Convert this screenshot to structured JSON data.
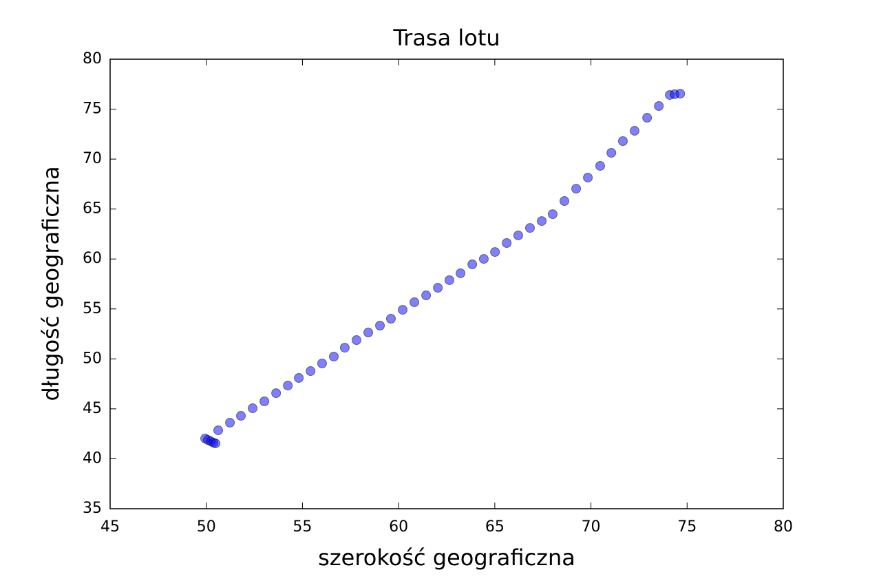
{
  "chart_data": {
    "type": "scatter",
    "title": "Trasa lotu",
    "x_label": "szerokość geograficzna",
    "y_label": "długość geograficzna",
    "x": [
      49.94,
      50.08,
      50.23,
      50.37,
      50.48,
      50.62,
      51.23,
      51.8,
      52.41,
      53.02,
      53.63,
      54.24,
      54.81,
      55.42,
      56.02,
      56.63,
      57.2,
      57.81,
      58.42,
      59.03,
      59.6,
      60.21,
      60.82,
      61.43,
      62.04,
      62.64,
      63.22,
      63.83,
      64.43,
      65.01,
      65.62,
      66.22,
      66.83,
      67.44,
      68.01,
      68.62,
      69.23,
      69.84,
      70.48,
      71.06,
      71.66,
      72.27,
      72.92,
      73.53,
      74.1,
      74.35,
      74.64
    ],
    "values": [
      42.03,
      41.89,
      41.75,
      41.61,
      41.54,
      42.85,
      43.61,
      44.3,
      45.06,
      45.75,
      46.57,
      47.33,
      48.09,
      48.78,
      49.54,
      50.23,
      51.12,
      51.88,
      52.64,
      53.33,
      54.02,
      54.91,
      55.67,
      56.36,
      57.12,
      57.88,
      58.57,
      59.46,
      60.01,
      60.7,
      61.6,
      62.36,
      63.11,
      63.8,
      64.49,
      65.8,
      67.04,
      68.15,
      69.32,
      70.63,
      71.8,
      72.83,
      74.14,
      75.31,
      76.42,
      76.49,
      76.55
    ],
    "color": "#0000ff",
    "alpha": 0.5,
    "xlim": [
      45,
      80
    ],
    "xticks": [
      45,
      50,
      55,
      60,
      65,
      70,
      75,
      80
    ],
    "ylim": [
      35,
      80
    ],
    "yticks": [
      35,
      40,
      45,
      50,
      55,
      60,
      65,
      70,
      75,
      80
    ],
    "grid": false
  }
}
